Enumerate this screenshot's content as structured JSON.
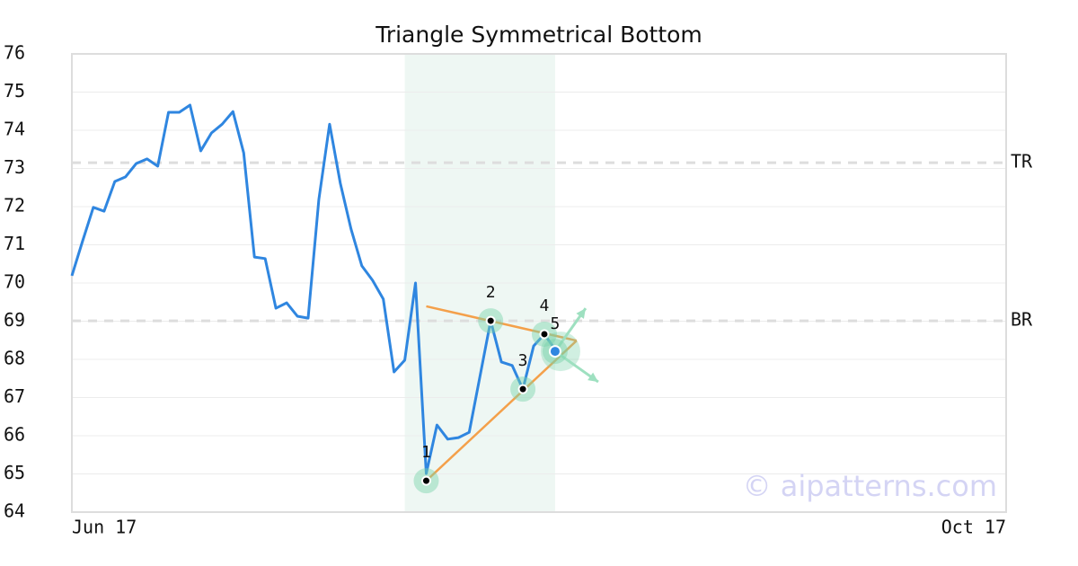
{
  "chart_data": {
    "type": "line",
    "title": "Triangle Symmetrical Bottom",
    "categories": [
      "Jun 17",
      null,
      null,
      null,
      null,
      null,
      null,
      null,
      null,
      null,
      null,
      null,
      null,
      null,
      null,
      null,
      null,
      null,
      null,
      null,
      null,
      null,
      null,
      null,
      null,
      null,
      null,
      null,
      null,
      null,
      null,
      null,
      null,
      null,
      null,
      null,
      null,
      null,
      null,
      null,
      null,
      null,
      null,
      null,
      null,
      null,
      null,
      null,
      null,
      null,
      null,
      null,
      null,
      null,
      null,
      null,
      null,
      null,
      null,
      null,
      null,
      null,
      null,
      null,
      null,
      null,
      null,
      null,
      null,
      null,
      null,
      null,
      null,
      null,
      null,
      null,
      null,
      null,
      null,
      null,
      null,
      null,
      null,
      null,
      null,
      null,
      null,
      "Oct 17"
    ],
    "series": [
      {
        "color": "#2f86e0",
        "values": [
          70.19,
          71.1,
          71.98,
          71.88,
          72.66,
          72.78,
          73.13,
          73.25,
          73.06,
          74.47,
          74.47,
          74.66,
          73.46,
          73.93,
          74.16,
          74.49,
          73.41,
          70.68,
          70.64,
          69.34,
          69.48,
          69.13,
          69.08,
          72.19,
          74.16,
          72.61,
          71.41,
          70.45,
          70.07,
          69.58,
          67.67,
          67.98,
          70.0,
          65.01,
          66.28,
          65.91,
          65.95,
          66.09,
          67.55,
          69.01,
          67.93,
          67.84,
          67.22,
          68.35,
          68.66,
          68.26,
          null,
          null,
          null,
          null,
          null,
          null,
          null,
          null,
          null,
          null,
          null,
          null,
          null,
          null,
          null,
          null,
          null,
          null,
          null,
          null,
          null,
          null,
          null,
          null,
          null,
          null,
          null,
          null,
          null,
          null,
          null,
          null,
          null,
          null,
          null,
          null,
          null,
          null,
          null,
          null,
          null,
          null
        ]
      }
    ],
    "points": [
      {
        "label": "1",
        "x": 33,
        "value": 64.82
      },
      {
        "label": "2",
        "x": 39,
        "value": 69.01
      },
      {
        "label": "3",
        "x": 42,
        "value": 67.22
      },
      {
        "label": "4",
        "x": 44,
        "value": 68.66
      },
      {
        "label": "5",
        "x": 45,
        "value": 68.21
      }
    ],
    "trendlines": [
      {
        "color": "#f4a04a",
        "x": [
          33,
          47
        ],
        "values": [
          69.39,
          68.49
        ]
      },
      {
        "color": "#f4a04a",
        "x": [
          33,
          47
        ],
        "values": [
          64.82,
          68.49
        ]
      }
    ],
    "levels": [
      {
        "label": "TR",
        "value": 73.15
      },
      {
        "label": "BR",
        "value": 69.01
      }
    ],
    "highlight_range": [
      31,
      45
    ],
    "watermark": "© aipatterns.com",
    "ylim": [
      64,
      76
    ],
    "yticks": [
      64,
      65,
      66,
      67,
      68,
      69,
      70,
      71,
      72,
      73,
      74,
      75,
      76
    ],
    "grid": true
  }
}
